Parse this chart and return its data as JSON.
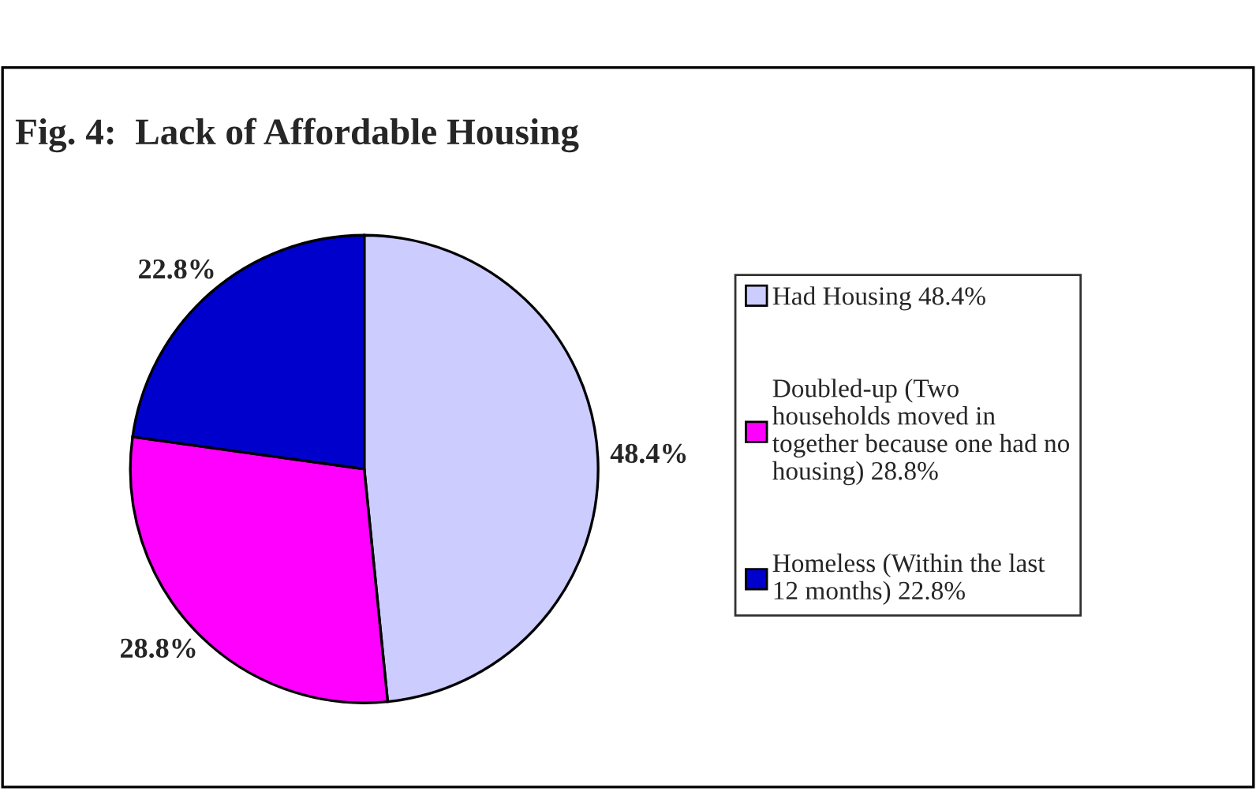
{
  "chart_data": {
    "type": "pie",
    "title": "Fig. 4:  Lack of Affordable Housing",
    "categories": [
      "Had Housing 48.4%",
      "Doubled-up (Two\nhouseholds moved in\ntogether because one had no\nhousing) 28.8%",
      "Homeless (Within the last\n12 months) 22.8%"
    ],
    "values": [
      48.4,
      28.8,
      22.8
    ],
    "colors": [
      "#ccccff",
      "#ff00ff",
      "#0000cc"
    ],
    "value_labels": [
      "48.4%",
      "28.8%",
      "22.8%"
    ],
    "legend": "right"
  }
}
